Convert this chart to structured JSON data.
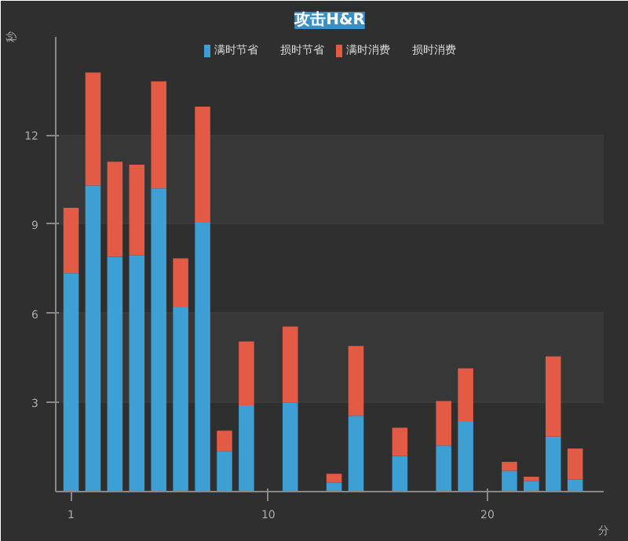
{
  "chart_data": {
    "type": "bar",
    "title": "攻击H&R",
    "xlabel": "分",
    "ylabel": "秒",
    "stacked": true,
    "x": [
      1,
      2,
      3,
      4,
      5,
      6,
      7,
      8,
      9,
      10,
      11,
      12,
      13,
      14,
      15,
      16,
      17,
      18,
      19,
      20,
      21,
      22,
      23,
      24
    ],
    "xlim": [
      0.3,
      25.3
    ],
    "xticks": [
      1,
      10,
      20
    ],
    "ylim": [
      0,
      15.3
    ],
    "yticks": [
      3,
      6,
      9,
      12
    ],
    "grid": "y",
    "legend": "top",
    "series": [
      {
        "name": "满时节省",
        "color": "#3d9fd3",
        "values": [
          7.35,
          10.3,
          7.9,
          7.95,
          10.2,
          6.2,
          9.05,
          1.35,
          2.9,
          null,
          3.0,
          null,
          0.3,
          2.55,
          null,
          1.2,
          null,
          1.55,
          2.35,
          null,
          0.7,
          0.35,
          1.85,
          0.4
        ]
      },
      {
        "name": "损时节省",
        "color": "#cccccc",
        "values": [
          null,
          null,
          null,
          null,
          null,
          null,
          null,
          null,
          null,
          null,
          null,
          null,
          null,
          null,
          null,
          null,
          null,
          null,
          null,
          null,
          null,
          null,
          null,
          null
        ]
      },
      {
        "name": "满时消费",
        "color": "#e35b45",
        "values": [
          2.2,
          3.8,
          3.2,
          3.05,
          3.6,
          1.65,
          3.9,
          0.7,
          2.15,
          null,
          2.55,
          null,
          0.3,
          2.35,
          null,
          0.95,
          null,
          1.5,
          1.8,
          null,
          0.3,
          0.15,
          2.7,
          1.05
        ]
      },
      {
        "name": "损时消费",
        "color": "#cccccc",
        "values": [
          null,
          null,
          null,
          null,
          null,
          null,
          null,
          null,
          null,
          null,
          null,
          null,
          null,
          null,
          null,
          null,
          null,
          null,
          null,
          null,
          null,
          null,
          null,
          null
        ]
      }
    ]
  }
}
